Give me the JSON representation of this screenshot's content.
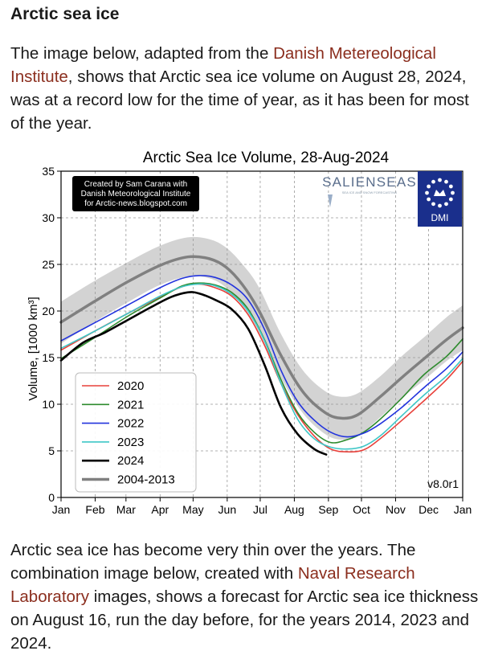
{
  "article": {
    "heading": "Arctic sea ice",
    "p1_before": "The image below, adapted from the ",
    "p1_link": "Danish Metereological Institute",
    "p1_after": ", shows that Arctic sea ice volume on August 28, 2024, was at a record low for the time of year, as it has been for most of the year.",
    "p2_before": "Arctic sea ice has become very thin over the years. The combination image below, created with ",
    "p2_link": "Naval Research Laboratory",
    "p2_after": " images, shows a forecast for Arctic sea ice thickness on August 16, run the day before, for the years 2014, 2023 and 2024."
  },
  "colors": {
    "link": "#8b2e1e",
    "dmi_blue": "#1a2f8c"
  },
  "chart_data": {
    "type": "line",
    "title": "Arctic Sea Ice Volume, 28-Aug-2024",
    "ylabel": "Volume, [1000 km³]",
    "xlabel": "",
    "ylim": [
      0,
      35
    ],
    "yticks": [
      0,
      5,
      10,
      15,
      20,
      25,
      30,
      35
    ],
    "xlim": [
      0,
      365
    ],
    "xticks": [
      {
        "label": "Jan",
        "day": 0
      },
      {
        "label": "Feb",
        "day": 31
      },
      {
        "label": "Mar",
        "day": 59
      },
      {
        "label": "Apr",
        "day": 90
      },
      {
        "label": "May",
        "day": 120
      },
      {
        "label": "Jun",
        "day": 151
      },
      {
        "label": "Jul",
        "day": 181
      },
      {
        "label": "Aug",
        "day": 212
      },
      {
        "label": "Sep",
        "day": 243
      },
      {
        "label": "Oct",
        "day": 273
      },
      {
        "label": "Nov",
        "day": 304
      },
      {
        "label": "Dec",
        "day": 334
      },
      {
        "label": "Jan",
        "day": 365
      }
    ],
    "grid": true,
    "legend_position": "bottom-left",
    "credit_lines": [
      "Created by Sam Carana with",
      "Danish Meteorological Institute",
      "for Arctic-news.blogspot.com"
    ],
    "logo_text": "SALIENSEAS",
    "logo_subtext": "SEA ICE AND SNOW FORECASTING",
    "dmi_label": "DMI",
    "version": "v8.0r1",
    "band_color": "#d3d3d3",
    "band": {
      "day": [
        0,
        30,
        60,
        90,
        115,
        135,
        150,
        165,
        180,
        200,
        220,
        240,
        255,
        270,
        290,
        310,
        330,
        350,
        365
      ],
      "low": [
        16.5,
        18.8,
        20.9,
        22.8,
        23.7,
        23.5,
        22.5,
        20.5,
        17.5,
        12.8,
        9.0,
        6.8,
        6.2,
        6.6,
        8.6,
        10.7,
        12.6,
        14.6,
        15.8
      ],
      "high": [
        21.0,
        23.2,
        25.2,
        27.0,
        27.9,
        27.7,
        26.8,
        25.0,
        22.5,
        17.5,
        13.6,
        11.4,
        10.8,
        11.2,
        13.0,
        15.2,
        17.2,
        19.3,
        20.6
      ]
    },
    "series": [
      {
        "name": "2020",
        "color": "#e8403a",
        "width": 1.6,
        "day": [
          0,
          30,
          60,
          90,
          110,
          125,
          140,
          155,
          170,
          185,
          200,
          215,
          230,
          245,
          260,
          275,
          290,
          310,
          330,
          350,
          365
        ],
        "values": [
          15.8,
          17.8,
          19.7,
          21.5,
          22.6,
          22.9,
          22.5,
          21.6,
          19.6,
          16.3,
          12.2,
          8.9,
          6.6,
          5.2,
          4.9,
          5.1,
          6.3,
          8.3,
          10.4,
          12.6,
          14.6
        ]
      },
      {
        "name": "2021",
        "color": "#2e8b2e",
        "width": 1.6,
        "day": [
          0,
          30,
          60,
          90,
          110,
          125,
          140,
          155,
          170,
          185,
          200,
          215,
          230,
          245,
          260,
          275,
          290,
          310,
          330,
          350,
          365
        ],
        "values": [
          14.9,
          17.1,
          19.4,
          21.4,
          22.7,
          23.0,
          22.8,
          22.0,
          20.2,
          16.9,
          12.6,
          9.1,
          7.0,
          5.9,
          6.2,
          7.0,
          8.4,
          10.7,
          13.2,
          15.1,
          17.0
        ]
      },
      {
        "name": "2022",
        "color": "#2233dd",
        "width": 1.6,
        "day": [
          0,
          30,
          60,
          90,
          110,
          125,
          140,
          155,
          170,
          185,
          200,
          215,
          230,
          245,
          260,
          275,
          290,
          310,
          330,
          350,
          365
        ],
        "values": [
          16.8,
          18.7,
          20.6,
          22.5,
          23.5,
          23.8,
          23.6,
          22.8,
          21.2,
          18.0,
          13.6,
          10.3,
          8.3,
          7.0,
          6.5,
          6.9,
          7.9,
          9.7,
          11.8,
          13.8,
          15.6
        ]
      },
      {
        "name": "2023",
        "color": "#3fc7c7",
        "width": 1.6,
        "day": [
          0,
          30,
          60,
          90,
          110,
          125,
          140,
          155,
          170,
          185,
          200,
          215,
          230,
          245,
          260,
          275,
          290,
          310,
          330,
          350,
          365
        ],
        "values": [
          16.0,
          17.8,
          19.7,
          21.6,
          22.6,
          22.9,
          22.7,
          21.8,
          20.0,
          16.8,
          12.2,
          8.4,
          6.3,
          5.4,
          5.2,
          5.5,
          6.6,
          8.8,
          11.0,
          13.0,
          14.9
        ]
      },
      {
        "name": "2024",
        "color": "#000000",
        "width": 2.6,
        "day": [
          0,
          20,
          40,
          60,
          80,
          100,
          115,
          125,
          140,
          155,
          170,
          185,
          200,
          215,
          230,
          241
        ],
        "values": [
          14.7,
          16.6,
          17.7,
          19.0,
          20.3,
          21.5,
          22.0,
          21.9,
          21.2,
          20.2,
          18.1,
          14.2,
          9.6,
          6.8,
          5.2,
          4.6
        ]
      },
      {
        "name": "2004-2013",
        "color": "#808080",
        "width": 3.5,
        "day": [
          0,
          30,
          60,
          90,
          115,
          135,
          150,
          165,
          180,
          200,
          220,
          240,
          255,
          270,
          290,
          310,
          330,
          350,
          365
        ],
        "values": [
          18.8,
          21.0,
          23.1,
          24.9,
          25.8,
          25.6,
          24.7,
          22.8,
          20.0,
          15.2,
          11.3,
          9.1,
          8.5,
          8.9,
          10.8,
          12.9,
          14.9,
          16.9,
          18.2
        ]
      }
    ]
  }
}
